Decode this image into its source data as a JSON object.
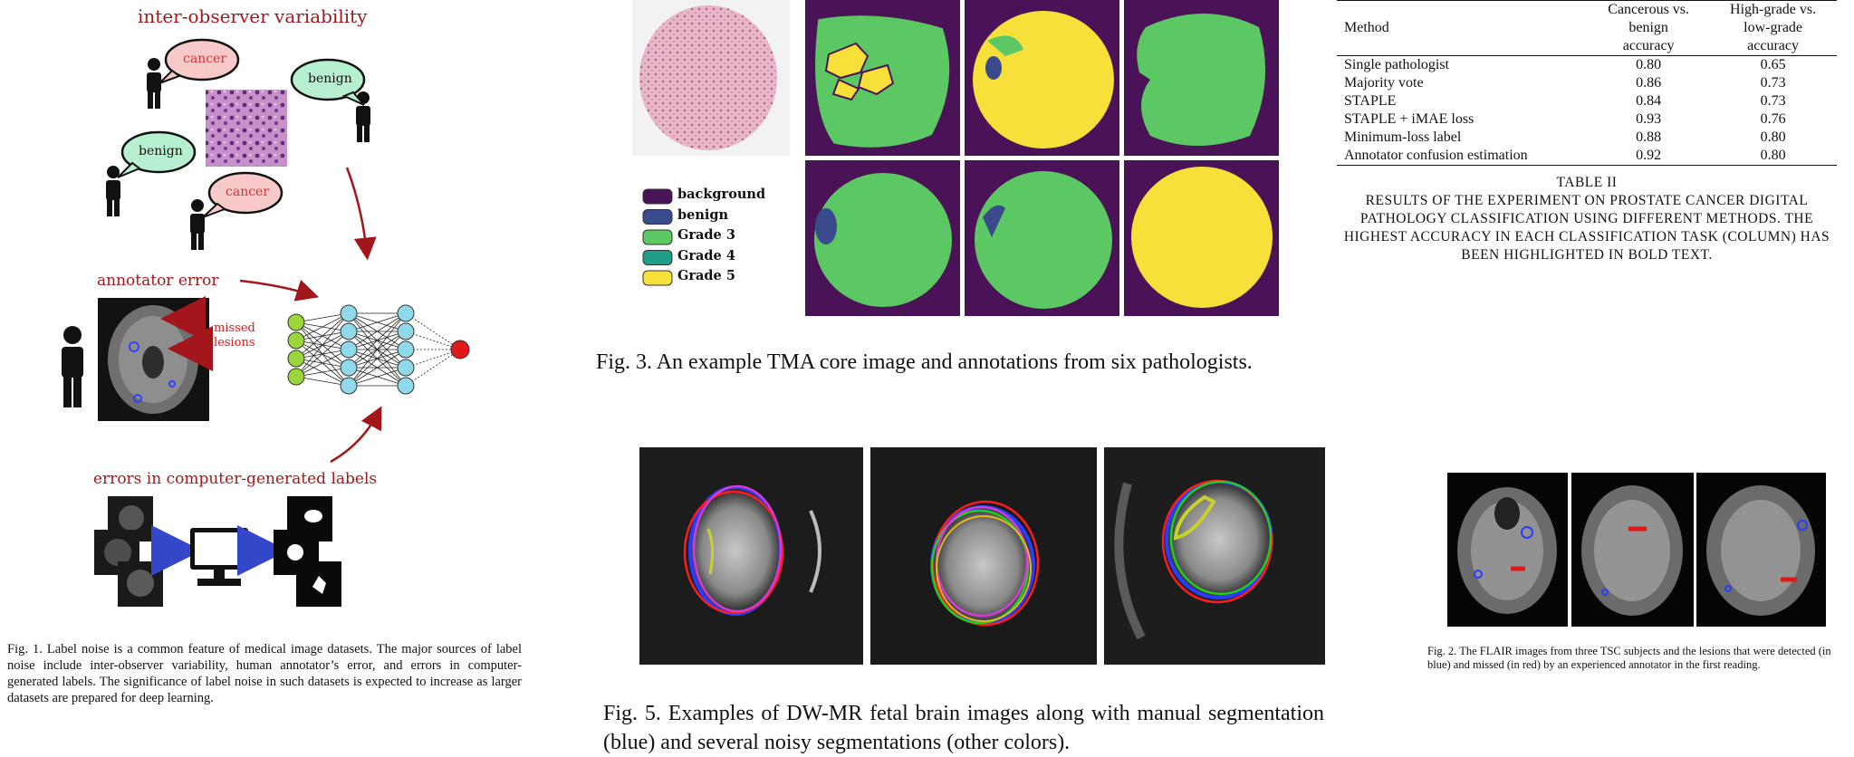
{
  "fig1": {
    "labels": {
      "inter_observer": "inter-observer variability",
      "annotator_error": "annotator error",
      "computer_errors": "errors in computer-generated labels",
      "missed_lesions": "missed\nlesions"
    },
    "bubbles": [
      "cancer",
      "benign",
      "benign",
      "cancer"
    ],
    "caption": "Fig. 1.  Label noise is a common feature of medical image datasets. The major sources of label noise include inter-observer variability, human annotator’s error, and errors in computer-generated labels. The significance of label noise in such datasets is expected to increase as larger datasets are prepared for deep learning."
  },
  "fig3": {
    "legend": [
      {
        "label": "background",
        "color": "#4b1357"
      },
      {
        "label": "benign",
        "color": "#3b4a8c"
      },
      {
        "label": "Grade 3",
        "color": "#5cc863"
      },
      {
        "label": "Grade 4",
        "color": "#1f9e89"
      },
      {
        "label": "Grade 5",
        "color": "#f8e03b"
      }
    ],
    "caption": "Fig. 3.  An example TMA core image and annotations from six pathologists."
  },
  "table2": {
    "headers": [
      "Method",
      "Cancerous vs.\nbenign\naccuracy",
      "High-grade vs.\nlow-grade\naccuracy"
    ],
    "rows": [
      {
        "method": "Single pathologist",
        "a": "0.80",
        "b": "0.65",
        "a_bold": false,
        "b_bold": false
      },
      {
        "method": "Majority vote",
        "a": "0.86",
        "b": "0.73",
        "a_bold": false,
        "b_bold": false
      },
      {
        "method": "STAPLE",
        "a": "0.84",
        "b": "0.73",
        "a_bold": false,
        "b_bold": false
      },
      {
        "method": "STAPLE + iMAE loss",
        "a": "0.93",
        "b": "0.76",
        "a_bold": true,
        "b_bold": false
      },
      {
        "method": "Minimum-loss label",
        "a": "0.88",
        "b": "0.80",
        "a_bold": false,
        "b_bold": true
      },
      {
        "method": "Annotator confusion estimation",
        "a": "0.92",
        "b": "0.80",
        "a_bold": false,
        "b_bold": true
      }
    ],
    "title": "TABLE II",
    "caption": "RESULTS OF THE EXPERIMENT ON PROSTATE CANCER DIGITAL PATHOLOGY CLASSIFICATION USING DIFFERENT METHODS. THE HIGHEST ACCURACY IN EACH CLASSIFICATION TASK (COLUMN) HAS BEEN HIGHLIGHTED IN BOLD TEXT."
  },
  "fig5": {
    "caption": "Fig. 5.  Examples of DW-MR fetal brain images along with manual segmentation (blue) and several noisy segmentations (other colors)."
  },
  "fig2": {
    "caption": "Fig. 2.  The FLAIR images from three TSC subjects and the lesions that were detected (in blue) and missed (in red) by an experienced annotator in the first reading."
  }
}
